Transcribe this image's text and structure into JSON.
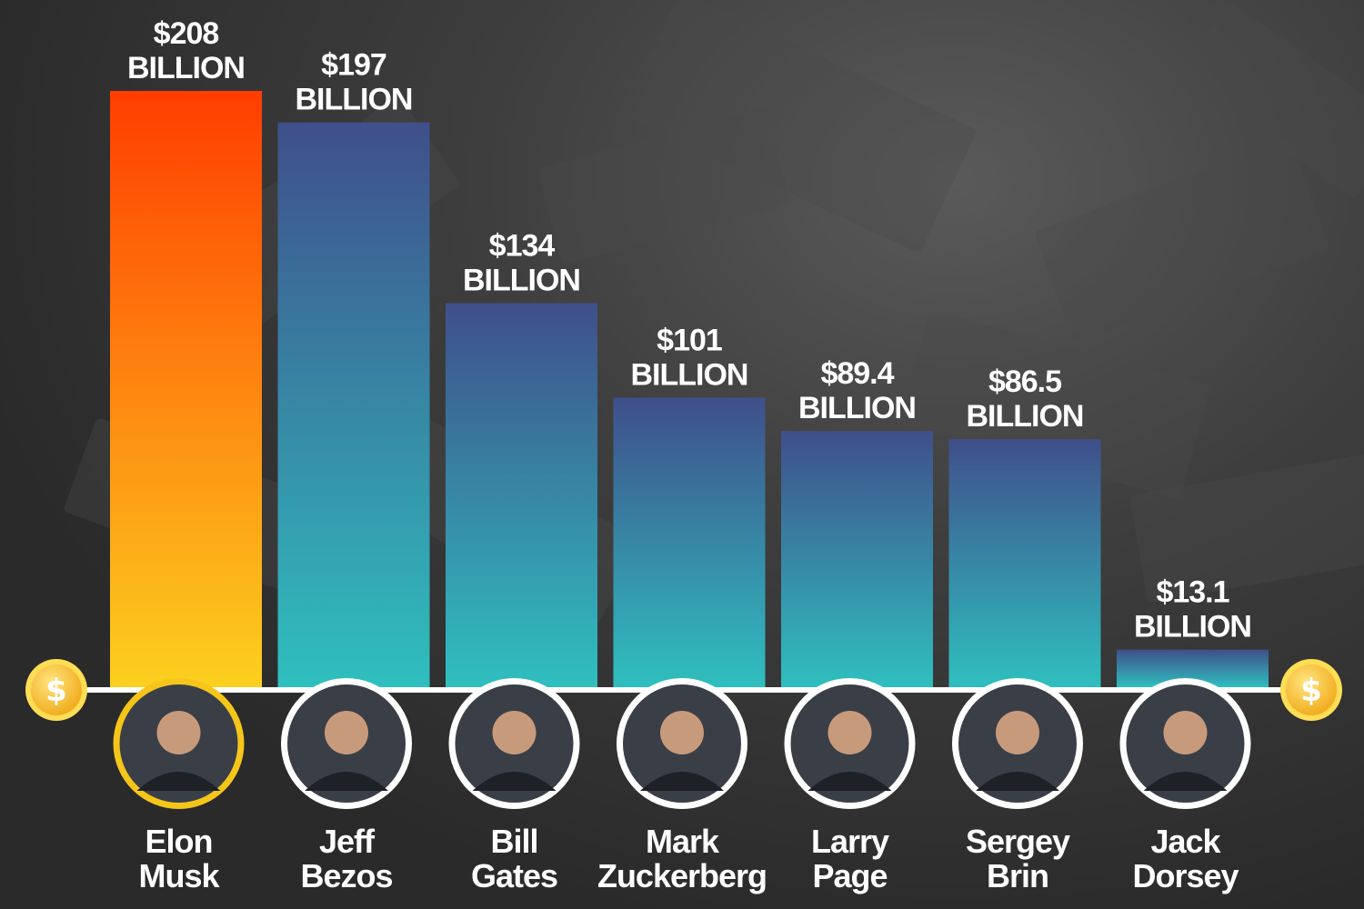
{
  "chart_data": {
    "type": "bar",
    "categories": [
      "Elon Musk",
      "Jeff Bezos",
      "Bill Gates",
      "Mark Zuckerberg",
      "Larry Page",
      "Sergey Brin",
      "Jack Dorsey"
    ],
    "values": [
      208,
      197,
      134,
      101,
      89.4,
      86.5,
      13.1
    ],
    "value_labels": [
      [
        "$208",
        "BILLION"
      ],
      [
        "$197",
        "BILLION"
      ],
      [
        "$134",
        "BILLION"
      ],
      [
        "$101",
        "BILLION"
      ],
      [
        "$89.4",
        "BILLION"
      ],
      [
        "$86.5",
        "BILLION"
      ],
      [
        "$13.1",
        "BILLION"
      ]
    ],
    "name_labels": [
      [
        "Elon",
        "Musk"
      ],
      [
        "Jeff",
        "Bezos"
      ],
      [
        "Bill",
        "Gates"
      ],
      [
        "Mark",
        "Zuckerberg"
      ],
      [
        "Larry",
        "Page"
      ],
      [
        "Sergey",
        "Brin"
      ],
      [
        "Jack",
        "Dorsey"
      ]
    ],
    "ylim": [
      0,
      208
    ],
    "grid": false,
    "legend": "none",
    "highlight_index": 0,
    "colors": {
      "highlight_top": "#ff3d00",
      "highlight_bottom": "#fcd01f",
      "bar_top": "#3f4f8a",
      "bar_bottom": "#2fbfbf",
      "baseline": "#ffffff",
      "coin": "#f7b928",
      "coin_rim": "#ffdd55",
      "avatar_ring": "#ffffff",
      "highlight_ring": "#f5c51a"
    },
    "icons": [
      "dollar-coin-icon"
    ]
  }
}
